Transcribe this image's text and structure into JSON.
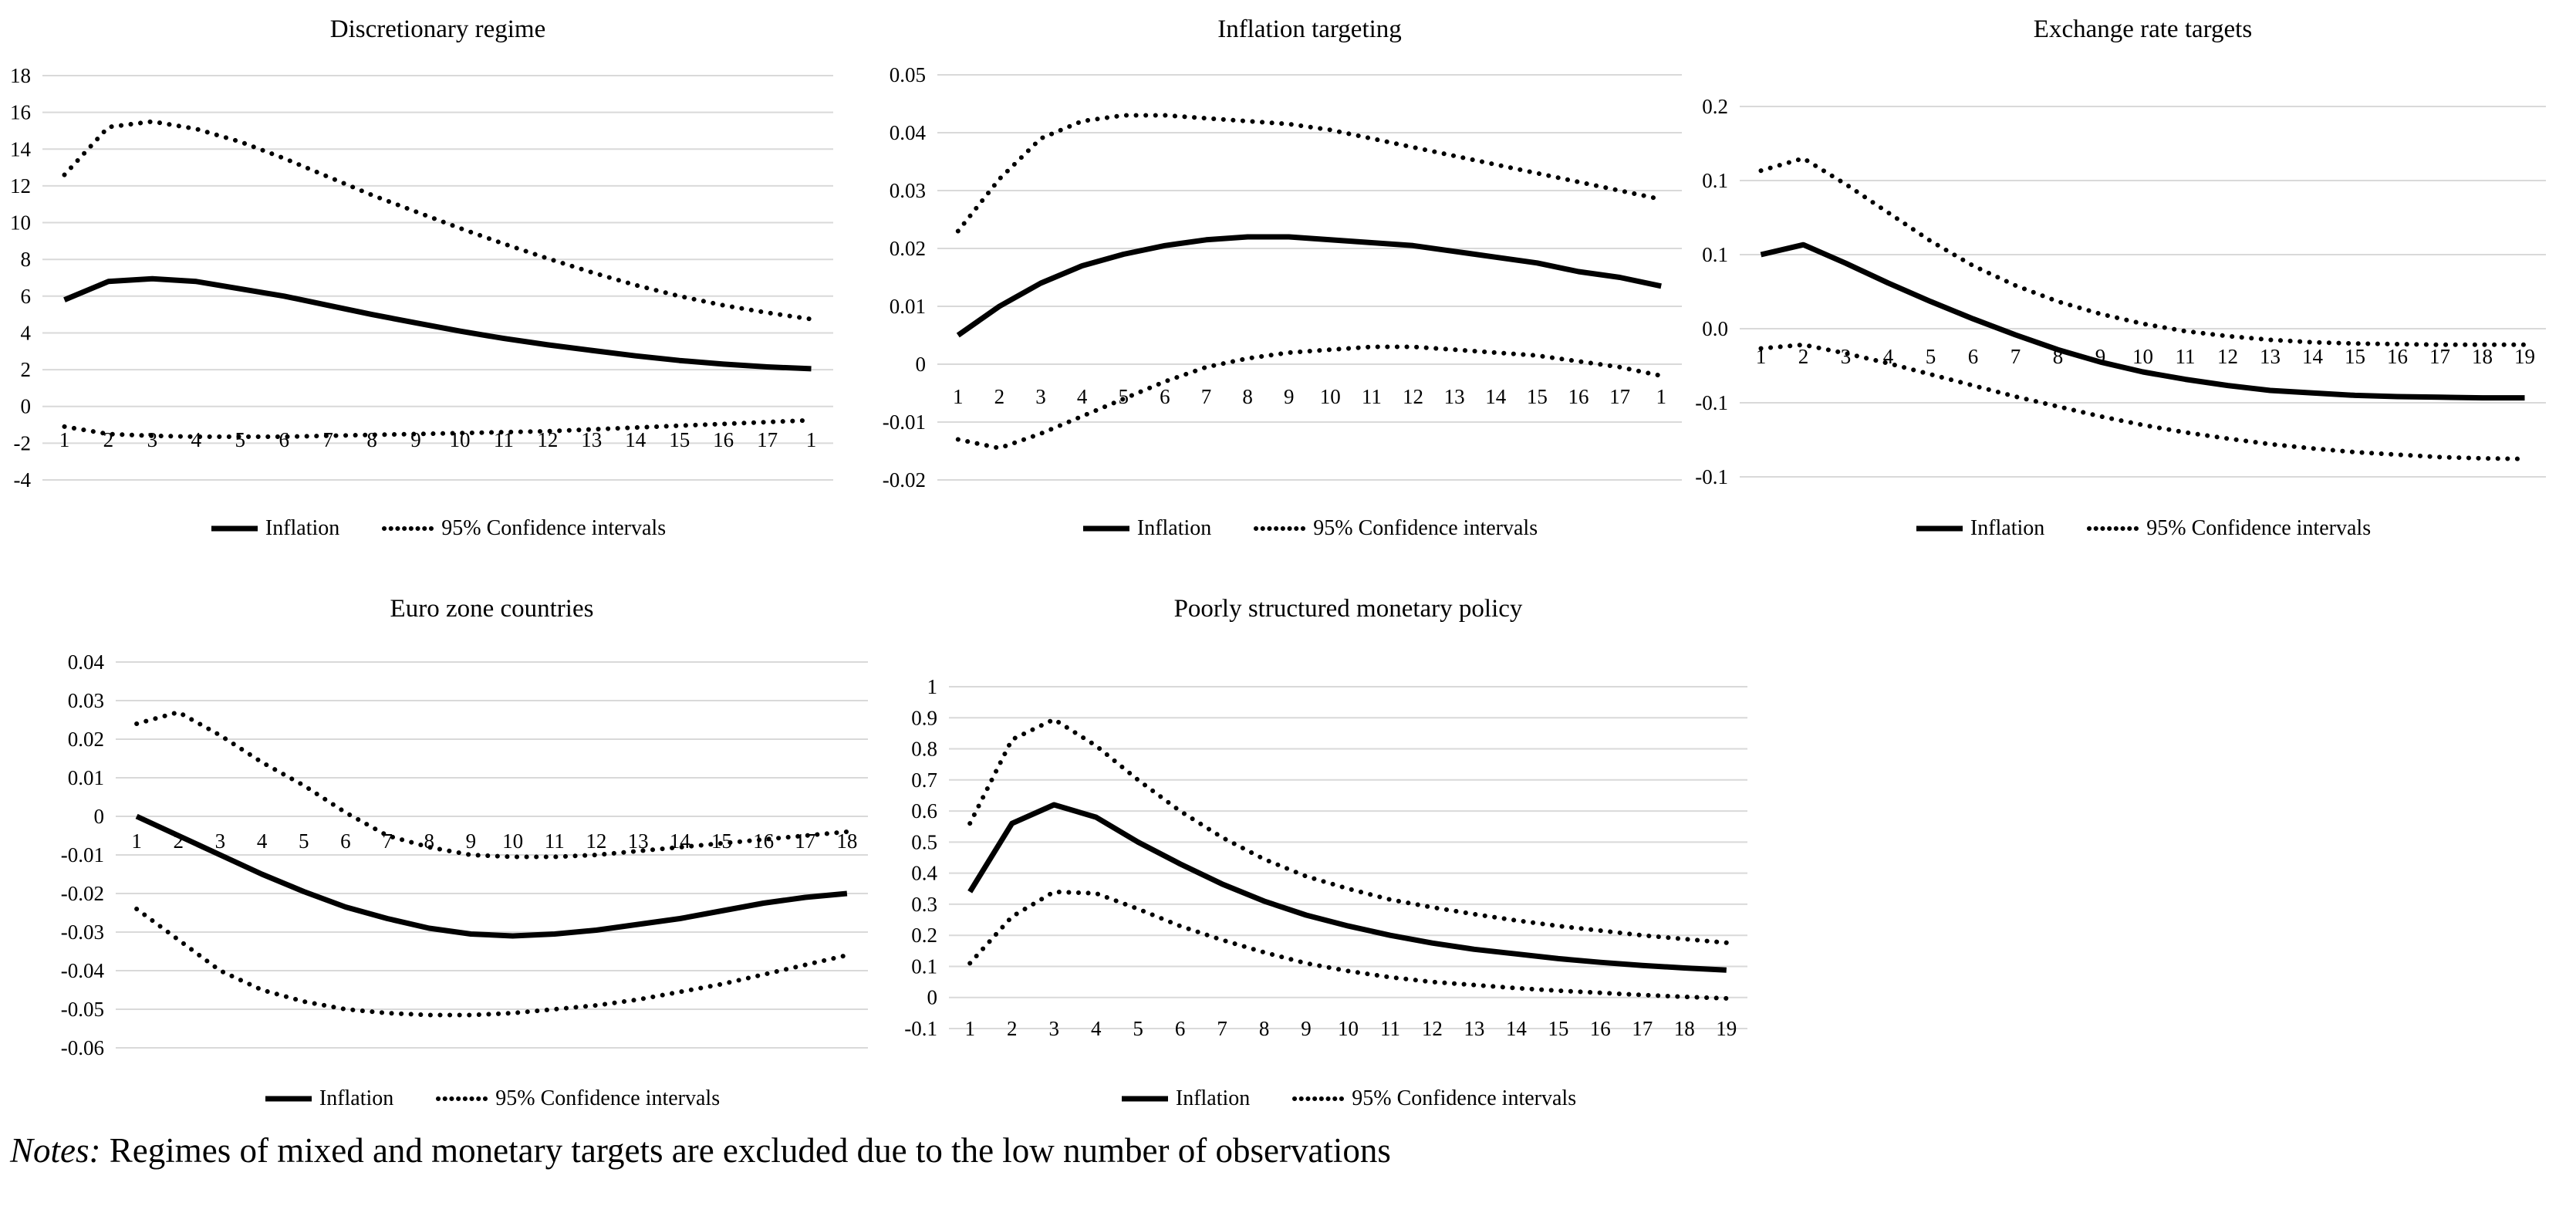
{
  "legend": {
    "inflation_label": "Inflation",
    "ci_label": "95% Confidence intervals"
  },
  "notes": {
    "prefix": "Notes:",
    "body": " Regimes of mixed and monetary targets are excluded due to the low number of observations"
  },
  "styles": {
    "line_color": "#000000",
    "grid_color": "#d9d9d9",
    "text_color": "#000000",
    "background": "#ffffff"
  },
  "chart_data": {
    "type": "line",
    "grid": true,
    "legend_position": "bottom",
    "charts": [
      {
        "id": "discretionary-regime",
        "title": "Discretionary regime",
        "xlabel": "",
        "ylabel": "",
        "ylim": [
          -4,
          18
        ],
        "y_ticks": [
          {
            "label": "18",
            "value": 18
          },
          {
            "label": "16",
            "value": 16
          },
          {
            "label": "14",
            "value": 14
          },
          {
            "label": "12",
            "value": 12
          },
          {
            "label": "10",
            "value": 10
          },
          {
            "label": "8",
            "value": 8
          },
          {
            "label": "6",
            "value": 6
          },
          {
            "label": "4",
            "value": 4
          },
          {
            "label": "2",
            "value": 2
          },
          {
            "label": "0",
            "value": 0
          },
          {
            "label": "-2",
            "value": -2
          },
          {
            "label": "-4",
            "value": -4
          }
        ],
        "x_labels": [
          "1",
          "2",
          "3",
          "4",
          "5",
          "6",
          "7",
          "8",
          "9",
          "10",
          "11",
          "12",
          "13",
          "14",
          "15",
          "16",
          "17",
          "1"
        ],
        "series": [
          {
            "name": "Inflation",
            "style": "solid",
            "values": [
              5.8,
              6.8,
              6.95,
              6.8,
              6.4,
              6.0,
              5.5,
              5.0,
              4.55,
              4.1,
              3.7,
              3.35,
              3.05,
              2.75,
              2.5,
              2.3,
              2.15,
              2.05
            ]
          },
          {
            "name": "95% Confidence interval upper",
            "style": "dotted",
            "values": [
              12.6,
              15.2,
              15.5,
              15.1,
              14.4,
              13.5,
              12.5,
              11.5,
              10.6,
              9.7,
              8.85,
              8.05,
              7.3,
              6.6,
              6.0,
              5.5,
              5.1,
              4.75
            ]
          },
          {
            "name": "95% Confidence interval lower",
            "style": "dotted",
            "values": [
              -1.1,
              -1.5,
              -1.6,
              -1.65,
              -1.65,
              -1.65,
              -1.6,
              -1.55,
              -1.5,
              -1.45,
              -1.4,
              -1.35,
              -1.25,
              -1.15,
              -1.05,
              -0.95,
              -0.85,
              -0.75
            ]
          }
        ]
      },
      {
        "id": "inflation-targeting",
        "title": "Inflation targeting",
        "xlabel": "",
        "ylabel": "",
        "ylim": [
          -0.02,
          0.05
        ],
        "y_ticks": [
          {
            "label": "0.05",
            "value": 0.05
          },
          {
            "label": "0.04",
            "value": 0.04
          },
          {
            "label": "0.03",
            "value": 0.03
          },
          {
            "label": "0.02",
            "value": 0.02
          },
          {
            "label": "0.01",
            "value": 0.01
          },
          {
            "label": "0",
            "value": 0
          },
          {
            "label": "-0.01",
            "value": -0.01
          },
          {
            "label": "-0.02",
            "value": -0.02
          }
        ],
        "x_labels": [
          "1",
          "2",
          "3",
          "4",
          "5",
          "6",
          "7",
          "8",
          "9",
          "10",
          "11",
          "12",
          "13",
          "14",
          "15",
          "16",
          "17",
          "1"
        ],
        "series": [
          {
            "name": "Inflation",
            "style": "solid",
            "values": [
              0.005,
              0.01,
              0.014,
              0.017,
              0.019,
              0.0205,
              0.0215,
              0.022,
              0.022,
              0.0215,
              0.021,
              0.0205,
              0.0195,
              0.0185,
              0.0175,
              0.016,
              0.015,
              0.0135
            ]
          },
          {
            "name": "95% Confidence interval upper",
            "style": "dotted",
            "values": [
              0.023,
              0.032,
              0.039,
              0.042,
              0.043,
              0.043,
              0.0425,
              0.042,
              0.0415,
              0.0405,
              0.039,
              0.0375,
              0.036,
              0.0345,
              0.033,
              0.0315,
              0.03,
              0.0285
            ]
          },
          {
            "name": "95% Confidence interval lower",
            "style": "dotted",
            "values": [
              -0.013,
              -0.0145,
              -0.012,
              -0.009,
              -0.006,
              -0.003,
              -0.0005,
              0.001,
              0.002,
              0.0025,
              0.003,
              0.003,
              0.0025,
              0.002,
              0.0015,
              0.0005,
              -0.0005,
              -0.002
            ]
          }
        ]
      },
      {
        "id": "exchange-rate-targets",
        "title": "Exchange rate targets",
        "xlabel": "",
        "ylabel": "",
        "ylim": [
          -0.12,
          0.18
        ],
        "y_ticks": [
          {
            "label": "0.2",
            "value": 0.18
          },
          {
            "label": "0.1",
            "value": 0.12
          },
          {
            "label": "0.1",
            "value": 0.06
          },
          {
            "label": "0.0",
            "value": 0
          },
          {
            "label": "-0.1",
            "value": -0.06
          },
          {
            "label": "-0.1",
            "value": -0.12
          }
        ],
        "x_labels": [
          "1",
          "2",
          "3",
          "4",
          "5",
          "6",
          "7",
          "8",
          "9",
          "10",
          "11",
          "12",
          "13",
          "14",
          "15",
          "16",
          "17",
          "18",
          "19"
        ],
        "series": [
          {
            "name": "Inflation",
            "style": "solid",
            "values": [
              0.06,
              0.068,
              0.053,
              0.037,
              0.022,
              0.008,
              -0.005,
              -0.017,
              -0.027,
              -0.035,
              -0.041,
              -0.046,
              -0.05,
              -0.052,
              -0.054,
              -0.055,
              -0.0555,
              -0.056,
              -0.056
            ]
          },
          {
            "name": "95% Confidence interval upper",
            "style": "dotted",
            "values": [
              0.128,
              0.138,
              0.117,
              0.094,
              0.071,
              0.051,
              0.035,
              0.022,
              0.012,
              0.004,
              -0.002,
              -0.006,
              -0.009,
              -0.011,
              -0.012,
              -0.0125,
              -0.013,
              -0.013,
              -0.013
            ]
          },
          {
            "name": "95% Confidence interval lower",
            "style": "dotted",
            "values": [
              -0.016,
              -0.013,
              -0.02,
              -0.028,
              -0.037,
              -0.046,
              -0.055,
              -0.063,
              -0.071,
              -0.078,
              -0.084,
              -0.089,
              -0.0935,
              -0.097,
              -0.1,
              -0.102,
              -0.104,
              -0.105,
              -0.1055
            ]
          }
        ]
      },
      {
        "id": "euro-zone-countries",
        "title": "Euro zone countries",
        "xlabel": "",
        "ylabel": "",
        "ylim": [
          -0.06,
          0.04
        ],
        "y_ticks": [
          {
            "label": "0.04",
            "value": 0.04
          },
          {
            "label": "0.03",
            "value": 0.03
          },
          {
            "label": "0.02",
            "value": 0.02
          },
          {
            "label": "0.01",
            "value": 0.01
          },
          {
            "label": "0",
            "value": 0
          },
          {
            "label": "-0.01",
            "value": -0.01
          },
          {
            "label": "-0.02",
            "value": -0.02
          },
          {
            "label": "-0.03",
            "value": -0.03
          },
          {
            "label": "-0.04",
            "value": -0.04
          },
          {
            "label": "-0.05",
            "value": -0.05
          },
          {
            "label": "-0.06",
            "value": -0.06
          }
        ],
        "x_labels": [
          "1",
          "2",
          "3",
          "4",
          "5",
          "6",
          "7",
          "8",
          "9",
          "10",
          "11",
          "12",
          "13",
          "14",
          "15",
          "16",
          "17",
          "18"
        ],
        "series": [
          {
            "name": "Inflation",
            "style": "solid",
            "values": [
              0.0,
              -0.005,
              -0.01,
              -0.015,
              -0.0195,
              -0.0235,
              -0.0265,
              -0.029,
              -0.0305,
              -0.031,
              -0.0305,
              -0.0295,
              -0.028,
              -0.0265,
              -0.0245,
              -0.0225,
              -0.021,
              -0.02
            ]
          },
          {
            "name": "95% Confidence interval upper",
            "style": "dotted",
            "values": [
              0.024,
              0.027,
              0.021,
              0.014,
              0.008,
              0.001,
              -0.005,
              -0.008,
              -0.01,
              -0.0105,
              -0.0105,
              -0.01,
              -0.009,
              -0.008,
              -0.007,
              -0.006,
              -0.005,
              -0.004
            ]
          },
          {
            "name": "95% Confidence interval lower",
            "style": "dotted",
            "values": [
              -0.024,
              -0.032,
              -0.04,
              -0.045,
              -0.048,
              -0.05,
              -0.051,
              -0.0515,
              -0.0515,
              -0.051,
              -0.05,
              -0.049,
              -0.0475,
              -0.0455,
              -0.0435,
              -0.041,
              -0.0385,
              -0.036
            ]
          }
        ]
      },
      {
        "id": "poorly-structured-monetary-policy",
        "title": "Poorly structured monetary policy",
        "xlabel": "",
        "ylabel": "",
        "ylim": [
          -0.1,
          1.0
        ],
        "y_ticks": [
          {
            "label": "1",
            "value": 1.0
          },
          {
            "label": "0.9",
            "value": 0.9
          },
          {
            "label": "0.8",
            "value": 0.8
          },
          {
            "label": "0.7",
            "value": 0.7
          },
          {
            "label": "0.6",
            "value": 0.6
          },
          {
            "label": "0.5",
            "value": 0.5
          },
          {
            "label": "0.4",
            "value": 0.4
          },
          {
            "label": "0.3",
            "value": 0.3
          },
          {
            "label": "0.2",
            "value": 0.2
          },
          {
            "label": "0.1",
            "value": 0.1
          },
          {
            "label": "0",
            "value": 0
          },
          {
            "label": "-0.1",
            "value": -0.1
          }
        ],
        "x_labels": [
          "1",
          "2",
          "3",
          "4",
          "5",
          "6",
          "7",
          "8",
          "9",
          "10",
          "11",
          "12",
          "13",
          "14",
          "15",
          "16",
          "17",
          "18",
          "19"
        ],
        "series": [
          {
            "name": "Inflation",
            "style": "solid",
            "values": [
              0.34,
              0.56,
              0.62,
              0.58,
              0.5,
              0.43,
              0.365,
              0.31,
              0.265,
              0.23,
              0.2,
              0.175,
              0.155,
              0.14,
              0.125,
              0.113,
              0.103,
              0.095,
              0.088
            ]
          },
          {
            "name": "95% Confidence interval upper",
            "style": "dotted",
            "values": [
              0.56,
              0.83,
              0.895,
              0.81,
              0.7,
              0.6,
              0.515,
              0.445,
              0.39,
              0.35,
              0.315,
              0.29,
              0.268,
              0.248,
              0.23,
              0.215,
              0.2,
              0.188,
              0.176
            ]
          },
          {
            "name": "95% Confidence interval lower",
            "style": "dotted",
            "values": [
              0.11,
              0.26,
              0.34,
              0.335,
              0.285,
              0.23,
              0.185,
              0.145,
              0.11,
              0.085,
              0.065,
              0.05,
              0.04,
              0.03,
              0.022,
              0.015,
              0.008,
              0.002,
              -0.003
            ]
          }
        ]
      }
    ]
  }
}
